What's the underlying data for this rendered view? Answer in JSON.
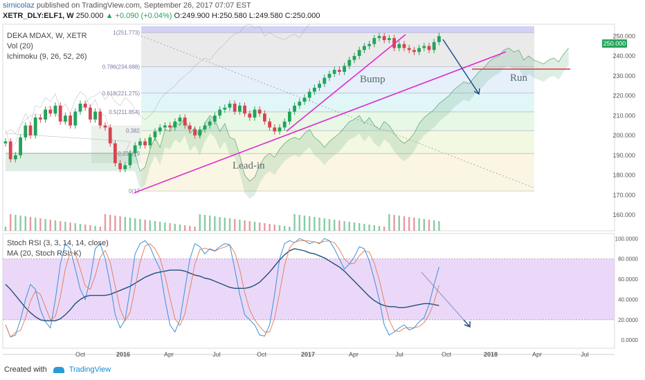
{
  "header": {
    "author": "sirnicolaz",
    "published_text": "published on TradingView.com, September 26, 2017 07:07 EST",
    "symbol": "XETR_DLY:ELF1, W",
    "last": "250.000",
    "change": "▲ +0.090 (+0.04%)",
    "ohlc": "O:249.900 H:250.580 L:249.580 C:250.000"
  },
  "legend": {
    "title": "DEKA MDAX, W, XETR",
    "vol": "Vol (20)",
    "ichimoku": "Ichimoku (9, 26, 52, 26)",
    "stoch": "Stoch RSI (3, 3, 14, 14, close)",
    "ma": "MA (20, Stoch RSI: K)"
  },
  "annotations": {
    "leadin": "Lead-in",
    "bump": "Bump",
    "run": "Run"
  },
  "fib_labels": [
    "1(251.773)",
    "0.786(234.688)",
    "0.618(221.275)",
    "0.5(211.854)",
    "0.382",
    "0.236(19",
    "0(17"
  ],
  "price_badge": "250.000",
  "footer": {
    "created": "Created with",
    "brand": "TradingView"
  },
  "colors": {
    "up": "#22a35a",
    "down": "#d64550",
    "fib_top": "#c7c6f2",
    "fib_red": "#f5c2c2",
    "trend": "#e026d2",
    "arrow": "#1f4e8c",
    "run_line": "#e03030",
    "stoch_band": "#e2c8f7"
  },
  "chart_data": [
    {
      "type": "line",
      "title": "DEKA MDAX, W, XETR",
      "x_ticks": [
        "Oct",
        "2016",
        "Apr",
        "Jul",
        "Oct",
        "2017",
        "Apr",
        "Jul",
        "Oct",
        "2018",
        "Apr",
        "Jul"
      ],
      "y_ticks": [
        "250.000",
        "240.000",
        "230.000",
        "220.000",
        "210.000",
        "200.000",
        "190.000",
        "180.000",
        "170.000",
        "160.000"
      ],
      "ylim": [
        152,
        256
      ],
      "fib_levels": [
        251.773,
        234.688,
        221.275,
        211.854,
        202.4,
        190.9,
        172.0
      ],
      "series": [
        {
          "name": "Close",
          "values": [
            197,
            188,
            190,
            199,
            205,
            200,
            209,
            208,
            213,
            211,
            215,
            207,
            210,
            205,
            212,
            216,
            214,
            208,
            212,
            205,
            204,
            196,
            186,
            183,
            185,
            191,
            195,
            197,
            195,
            199,
            202,
            204,
            205,
            204,
            207,
            209,
            205,
            203,
            200,
            203,
            205,
            207,
            210,
            213,
            214,
            216,
            212,
            215,
            211,
            209,
            213,
            211,
            207,
            204,
            202,
            204,
            207,
            212,
            215,
            217,
            219,
            222,
            224,
            226,
            229,
            231,
            233,
            232,
            235,
            238,
            240,
            243,
            245,
            246,
            249,
            250,
            248,
            249,
            244,
            246,
            244,
            243,
            242,
            244,
            245,
            243,
            247,
            250
          ]
        }
      ]
    },
    {
      "type": "line",
      "title": "Stoch RSI (3, 3, 14, 14, close)",
      "y_ticks": [
        "100.0000",
        "80.0000",
        "60.0000",
        "40.0000",
        "20.0000",
        "0.0000"
      ],
      "ylim": [
        -8,
        105
      ],
      "band": [
        20,
        80
      ],
      "series": [
        {
          "name": "K",
          "values": [
            15,
            3,
            5,
            20,
            40,
            55,
            50,
            30,
            18,
            12,
            40,
            75,
            95,
            90,
            70,
            50,
            40,
            60,
            90,
            95,
            80,
            55,
            25,
            12,
            20,
            50,
            85,
            95,
            98,
            92,
            80,
            70,
            40,
            15,
            8,
            20,
            50,
            80,
            95,
            92,
            85,
            90,
            88,
            92,
            95,
            94,
            70,
            45,
            25,
            20,
            15,
            5,
            4,
            15,
            45,
            80,
            95,
            98,
            96,
            100,
            98,
            95,
            97,
            95,
            100,
            98,
            90,
            80,
            70,
            75,
            82,
            92,
            90,
            78,
            60,
            40,
            15,
            5,
            8,
            12,
            15,
            10,
            12,
            18,
            22,
            35,
            55,
            72
          ]
        },
        {
          "name": "MA",
          "values": [
            55,
            50,
            44,
            38,
            32,
            27,
            23,
            20,
            19,
            19,
            19,
            21,
            25,
            30,
            36,
            40,
            43,
            44,
            44,
            44,
            44,
            45,
            47,
            49,
            51,
            53,
            56,
            59,
            62,
            64,
            66,
            67,
            68,
            69,
            69,
            69,
            68,
            66,
            64,
            63,
            61,
            60,
            58,
            56,
            54,
            52,
            51,
            51,
            51,
            52,
            54,
            57,
            62,
            67,
            73,
            79,
            84,
            88,
            90,
            89,
            88,
            86,
            85,
            83,
            81,
            78,
            75,
            72,
            68,
            63,
            58,
            53,
            48,
            43,
            39,
            36,
            34,
            33,
            33,
            32,
            32,
            33,
            34,
            35,
            36,
            36,
            35,
            34
          ]
        }
      ]
    }
  ]
}
